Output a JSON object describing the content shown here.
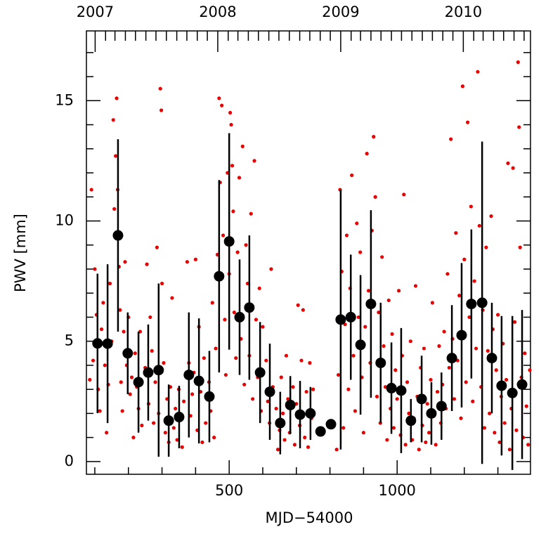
{
  "chart_data": {
    "type": "scatter",
    "xlabel": "MJD−54000",
    "ylabel": "PWV [mm]",
    "xlim": [
      75,
      1397
    ],
    "ylim": [
      -0.53,
      17.9
    ],
    "xticks": [
      500,
      1000
    ],
    "xminorticks": [
      100,
      200,
      300,
      400,
      600,
      700,
      800,
      900,
      1100,
      1200,
      1300
    ],
    "yticks": [
      0,
      5,
      10,
      15
    ],
    "yminorticks": [
      1,
      2,
      3,
      4,
      6,
      7,
      8,
      9,
      11,
      12,
      13,
      14,
      16,
      17
    ],
    "top_axis": {
      "ticks": [
        {
          "value": 101,
          "label": "2007"
        },
        {
          "value": 466,
          "label": "2008"
        },
        {
          "value": 832,
          "label": "2009"
        },
        {
          "value": 1197,
          "label": "2010"
        }
      ],
      "minor_ticks": [
        132,
        160,
        191,
        221,
        252,
        282,
        313,
        344,
        374,
        405,
        435,
        497,
        526,
        557,
        587,
        618,
        648,
        679,
        710,
        740,
        771,
        801,
        863,
        891,
        922,
        952,
        983,
        1013,
        1044,
        1075,
        1105,
        1136,
        1166,
        1228,
        1256,
        1287,
        1317,
        1348,
        1378
      ]
    },
    "series": [
      {
        "color": "#e80000",
        "x": [
          85,
          90,
          95,
          100,
          105,
          110,
          115,
          120,
          125,
          130,
          135,
          140,
          145,
          150,
          155,
          158,
          162,
          165,
          168,
          172,
          175,
          178,
          182,
          186,
          190,
          195,
          200,
          205,
          210,
          215,
          220,
          225,
          230,
          235,
          240,
          250,
          255,
          260,
          265,
          270,
          275,
          280,
          285,
          290,
          295,
          298,
          300,
          305,
          310,
          315,
          320,
          325,
          330,
          335,
          340,
          345,
          350,
          355,
          360,
          365,
          375,
          380,
          385,
          390,
          395,
          400,
          405,
          410,
          415,
          420,
          425,
          430,
          440,
          445,
          450,
          455,
          460,
          465,
          470,
          473,
          478,
          482,
          487,
          490,
          495,
          500,
          503,
          506,
          509,
          512,
          515,
          520,
          525,
          530,
          535,
          540,
          545,
          550,
          555,
          560,
          565,
          570,
          575,
          580,
          585,
          590,
          595,
          600,
          610,
          615,
          620,
          625,
          630,
          640,
          645,
          650,
          655,
          660,
          665,
          670,
          675,
          680,
          690,
          695,
          700,
          705,
          710,
          715,
          720,
          725,
          730,
          735,
          740,
          745,
          750,
          820,
          825,
          830,
          835,
          840,
          845,
          850,
          855,
          860,
          865,
          870,
          875,
          880,
          885,
          890,
          895,
          900,
          905,
          910,
          915,
          920,
          925,
          930,
          935,
          940,
          945,
          950,
          955,
          960,
          965,
          970,
          975,
          980,
          985,
          990,
          995,
          1000,
          1005,
          1010,
          1015,
          1020,
          1025,
          1030,
          1035,
          1040,
          1045,
          1050,
          1055,
          1060,
          1065,
          1070,
          1075,
          1080,
          1085,
          1090,
          1095,
          1100,
          1105,
          1110,
          1115,
          1120,
          1125,
          1130,
          1135,
          1140,
          1145,
          1150,
          1155,
          1160,
          1165,
          1170,
          1175,
          1180,
          1185,
          1190,
          1195,
          1200,
          1205,
          1210,
          1215,
          1220,
          1225,
          1230,
          1235,
          1240,
          1245,
          1250,
          1255,
          1260,
          1265,
          1270,
          1275,
          1280,
          1285,
          1290,
          1295,
          1300,
          1305,
          1310,
          1315,
          1320,
          1325,
          1330,
          1335,
          1340,
          1345,
          1350,
          1355,
          1360,
          1363,
          1366,
          1370,
          1375,
          1380,
          1385,
          1390,
          1395
        ],
        "values": [
          3.4,
          11.3,
          4.2,
          8.0,
          6.1,
          3.0,
          2.1,
          5.5,
          6.6,
          4.0,
          1.2,
          3.2,
          7.4,
          5.0,
          14.2,
          10.5,
          12.7,
          15.1,
          11.3,
          8.1,
          6.3,
          3.3,
          2.1,
          5.4,
          8.3,
          4.0,
          6.0,
          2.8,
          3.5,
          1.0,
          4.5,
          3.1,
          2.2,
          5.4,
          1.5,
          3.9,
          8.2,
          2.4,
          6.0,
          4.6,
          1.6,
          3.3,
          8.9,
          2.0,
          15.5,
          14.6,
          7.4,
          4.1,
          1.2,
          2.6,
          0.8,
          3.1,
          6.8,
          1.4,
          2.2,
          0.9,
          3.0,
          1.8,
          0.6,
          2.5,
          8.3,
          4.1,
          1.9,
          2.8,
          3.7,
          8.4,
          1.3,
          5.6,
          2.9,
          0.8,
          4.3,
          1.6,
          3.3,
          2.1,
          6.6,
          1.0,
          4.7,
          8.6,
          15.1,
          11.6,
          14.8,
          9.4,
          5.9,
          3.6,
          12.0,
          7.8,
          14.5,
          14.0,
          12.3,
          10.4,
          6.2,
          4.3,
          8.7,
          11.8,
          5.1,
          13.1,
          3.2,
          9.0,
          7.4,
          4.4,
          10.3,
          2.6,
          12.5,
          5.9,
          3.5,
          7.2,
          2.1,
          5.6,
          4.2,
          2.5,
          1.6,
          8.0,
          3.1,
          2.2,
          0.5,
          1.3,
          3.5,
          2.0,
          0.9,
          4.4,
          2.6,
          1.2,
          3.1,
          0.7,
          2.4,
          6.5,
          1.5,
          4.2,
          6.3,
          1.0,
          2.9,
          0.6,
          4.1,
          1.8,
          3.0,
          0.5,
          3.6,
          11.3,
          7.9,
          1.4,
          5.7,
          9.4,
          3.0,
          7.2,
          11.9,
          4.4,
          2.1,
          9.9,
          6.0,
          8.7,
          3.5,
          1.2,
          5.6,
          12.8,
          7.1,
          4.1,
          9.6,
          13.5,
          11.0,
          2.7,
          6.2,
          1.6,
          8.5,
          4.8,
          3.1,
          0.9,
          6.7,
          2.2,
          5.3,
          1.4,
          3.8,
          2.6,
          7.1,
          1.1,
          4.4,
          11.1,
          0.7,
          3.3,
          2.0,
          5.0,
          0.9,
          1.8,
          7.3,
          2.7,
          0.5,
          3.9,
          1.5,
          4.7,
          0.8,
          2.4,
          1.2,
          3.4,
          6.6,
          1.9,
          0.7,
          2.9,
          4.8,
          1.6,
          3.2,
          5.4,
          2.2,
          7.8,
          3.9,
          13.4,
          5.1,
          2.6,
          9.5,
          4.2,
          6.9,
          1.8,
          15.6,
          8.4,
          3.3,
          14.1,
          6.0,
          10.6,
          2.5,
          7.5,
          4.7,
          16.2,
          9.8,
          3.1,
          6.3,
          1.4,
          8.9,
          4.6,
          2.0,
          10.2,
          5.5,
          1.2,
          3.8,
          6.1,
          0.8,
          2.7,
          4.9,
          1.6,
          3.4,
          12.4,
          0.5,
          2.2,
          12.2,
          5.8,
          1.3,
          16.6,
          13.9,
          8.9,
          3.5,
          1.0,
          4.5,
          2.3,
          0.7,
          3.8
        ]
      },
      {
        "color": "#000000",
        "x": [
          108,
          138,
          169,
          198,
          230,
          259,
          290,
          320,
          351,
          380,
          410,
          441,
          470,
          500,
          531,
          560,
          592,
          621,
          652,
          682,
          711,
          742,
          772,
          803,
          832,
          862,
          891,
          922,
          951,
          983,
          1012,
          1041,
          1073,
          1102,
          1132,
          1163,
          1192,
          1221,
          1253,
          1282,
          1311,
          1343,
          1372
        ],
        "values": [
          4.91,
          4.9,
          9.4,
          4.5,
          3.3,
          3.7,
          3.8,
          1.7,
          1.85,
          3.6,
          3.35,
          2.7,
          7.7,
          9.15,
          6.0,
          6.4,
          3.7,
          2.9,
          1.6,
          2.35,
          1.95,
          2.0,
          1.25,
          1.55,
          5.9,
          6.0,
          4.85,
          6.55,
          4.1,
          3.05,
          2.95,
          1.7,
          2.6,
          2.0,
          2.3,
          4.3,
          5.25,
          6.55,
          6.6,
          4.3,
          3.15,
          2.85,
          3.2
        ],
        "errors": [
          2.9,
          3.3,
          4.0,
          1.7,
          2.1,
          2.0,
          3.6,
          1.5,
          1.3,
          2.6,
          2.6,
          1.9,
          4.0,
          4.5,
          2.4,
          3.0,
          2.1,
          2.0,
          1.3,
          1.2,
          1.4,
          1.1,
          0.2,
          0.2,
          5.4,
          2.6,
          2.9,
          3.9,
          2.5,
          1.9,
          2.6,
          0.9,
          1.8,
          1.3,
          1.4,
          2.2,
          3.0,
          3.1,
          6.7,
          2.3,
          2.9,
          3.2,
          3.1
        ]
      }
    ]
  }
}
